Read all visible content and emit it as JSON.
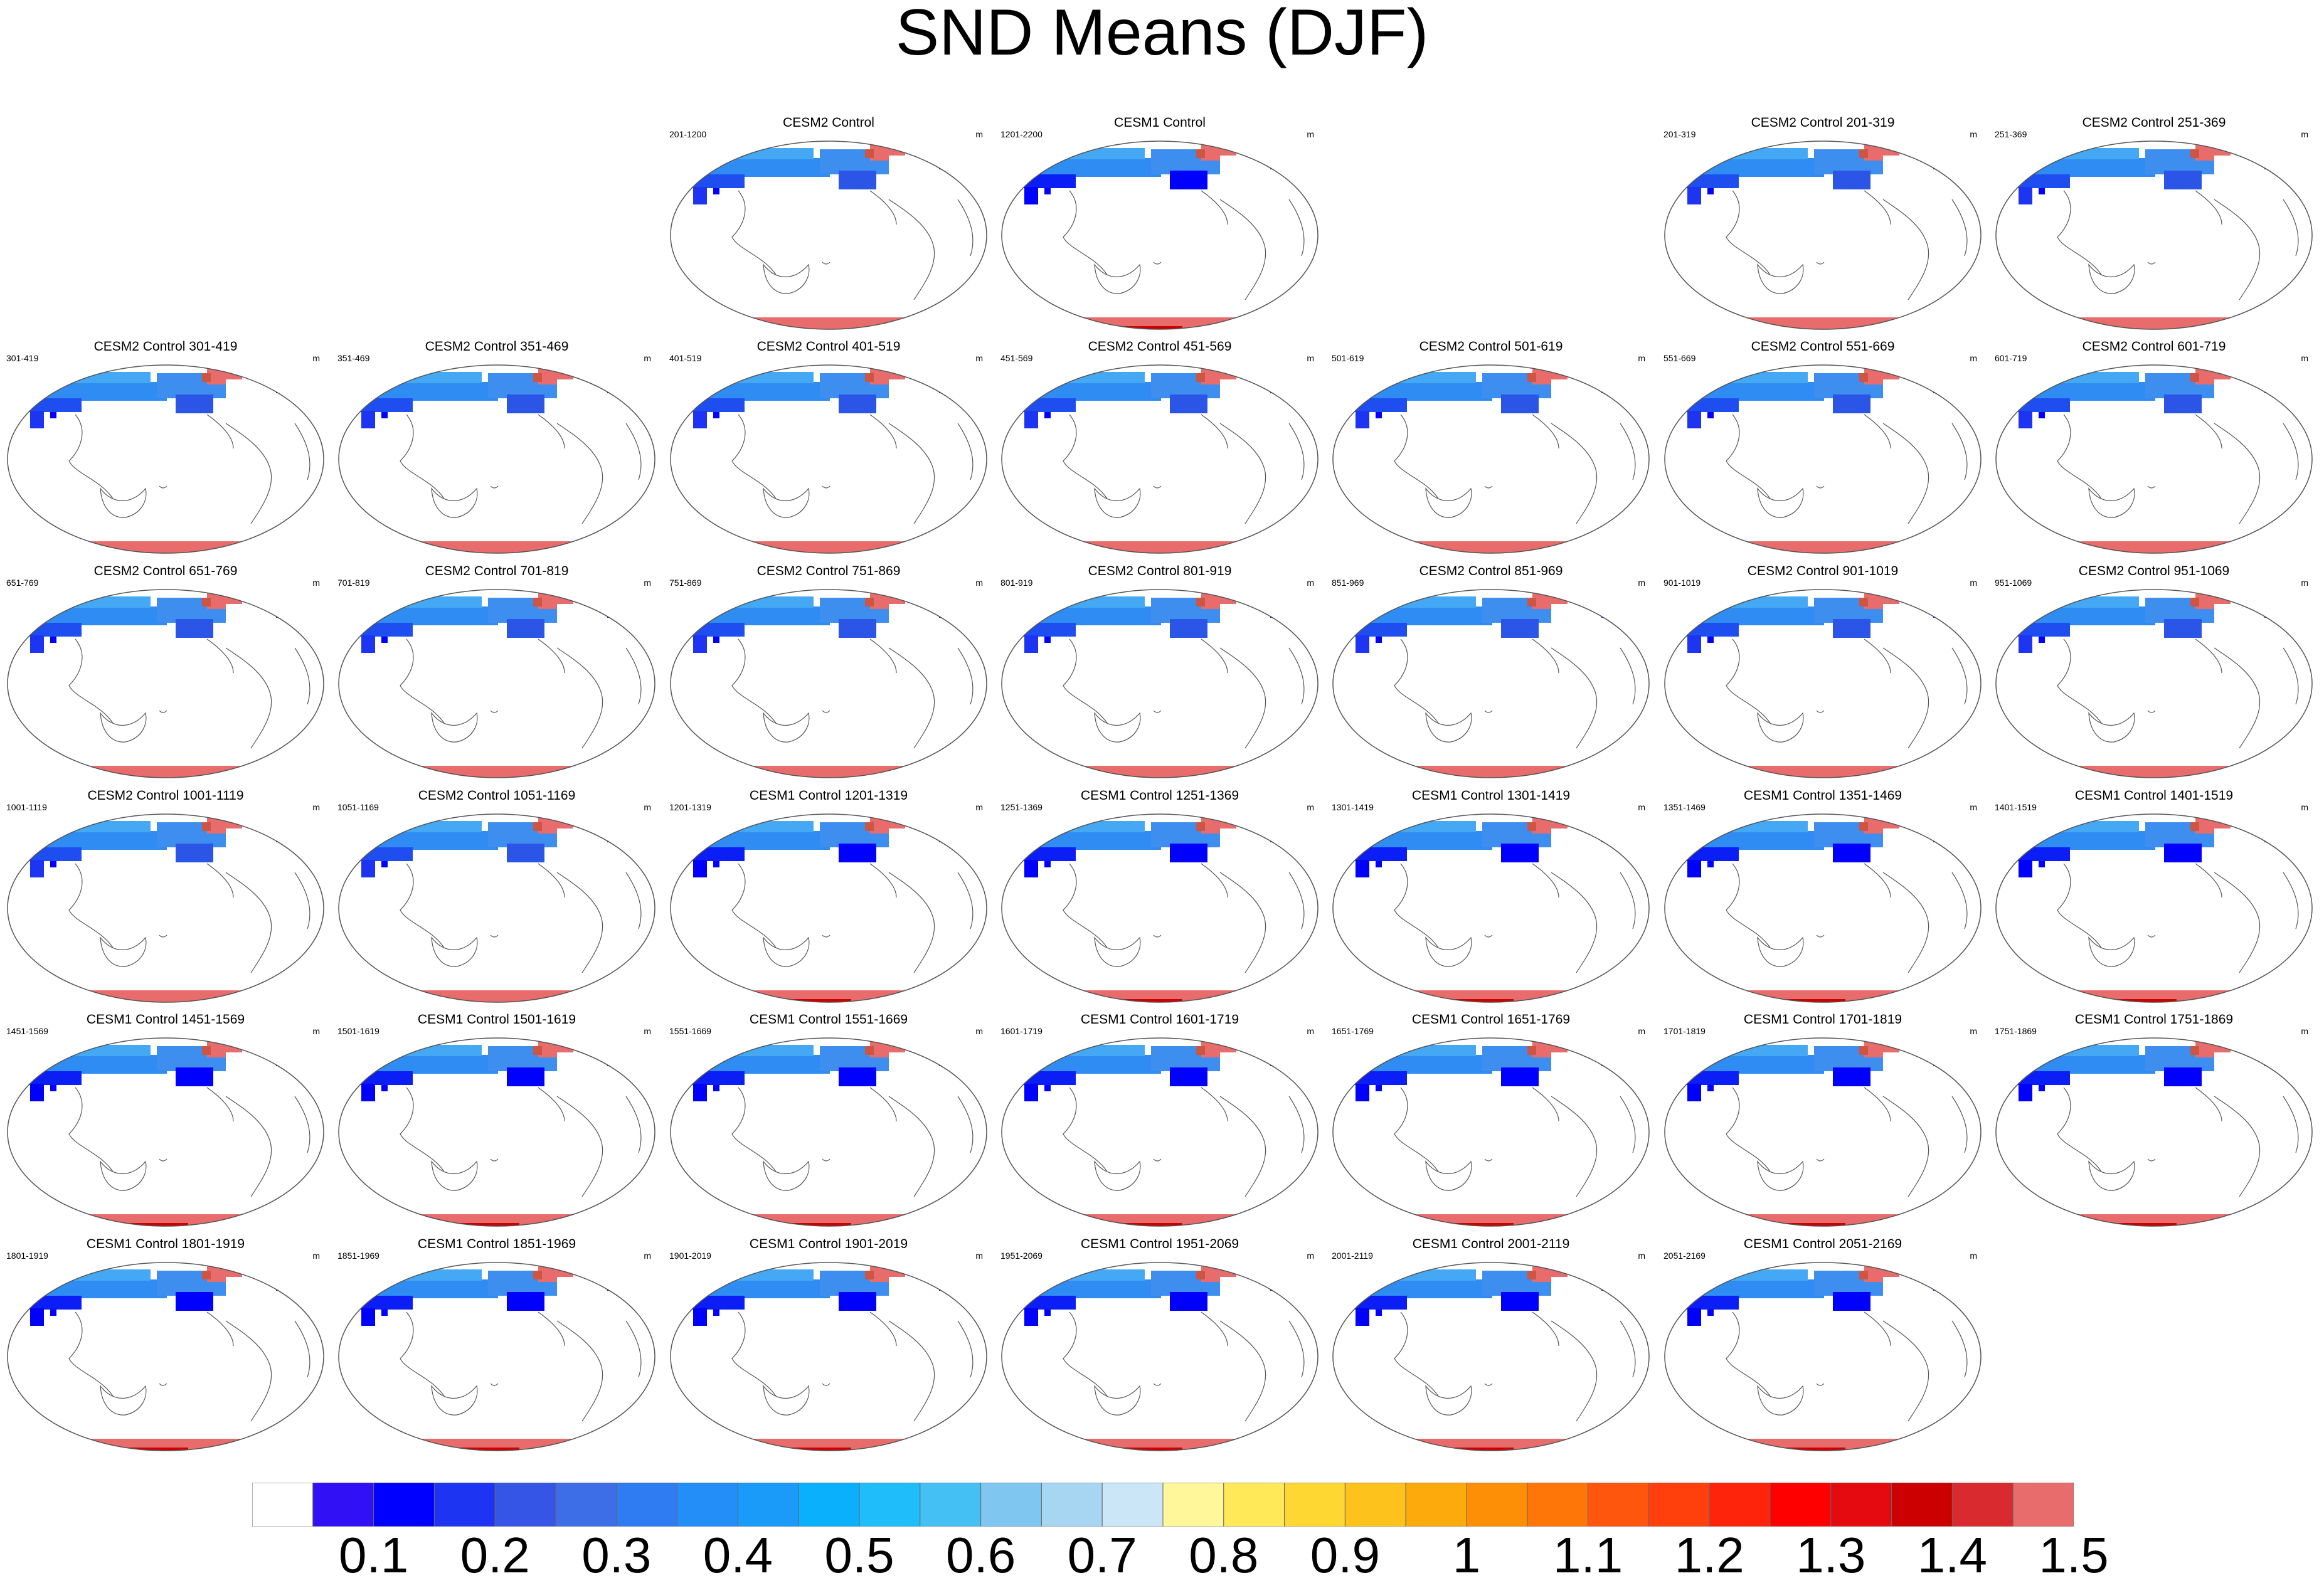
{
  "title": "SND Means (DJF)",
  "unit": "m",
  "colorbar": {
    "ticks": [
      "0.1",
      "0.2",
      "0.3",
      "0.4",
      "0.5",
      "0.6",
      "0.7",
      "0.8",
      "0.9",
      "1",
      "1.1",
      "1.2",
      "1.3",
      "1.4",
      "1.5"
    ],
    "colors": [
      "#ffffff",
      "#3210f5",
      "#0000ff",
      "#1e34f3",
      "#3455e6",
      "#3e6de8",
      "#2f7cf2",
      "#248ef8",
      "#1a9af9",
      "#0ab0fc",
      "#1fbefa",
      "#44c0f5",
      "#7fc7f0",
      "#a7d6f2",
      "#cbe6f6",
      "#fff799",
      "#ffe959",
      "#ffd732",
      "#fdc21b",
      "#fdaa0c",
      "#fd8f06",
      "#fe7607",
      "#fe570d",
      "#ff3f0c",
      "#fe240c",
      "#fe0000",
      "#e40a10",
      "#cc0000",
      "#d92a30",
      "#e86c6c"
    ]
  },
  "panels": [
    {
      "row": 0,
      "col": 2,
      "title": "CESM2 Control",
      "range": "201-1200",
      "model": "CESM2"
    },
    {
      "row": 0,
      "col": 3,
      "title": "CESM1 Control",
      "range": "1201-2200",
      "model": "CESM1"
    },
    {
      "row": 0,
      "col": 5,
      "title": "CESM2 Control 201-319",
      "range": "201-319",
      "model": "CESM2"
    },
    {
      "row": 0,
      "col": 6,
      "title": "CESM2 Control 251-369",
      "range": "251-369",
      "model": "CESM2"
    },
    {
      "row": 1,
      "col": 0,
      "title": "CESM2 Control 301-419",
      "range": "301-419",
      "model": "CESM2"
    },
    {
      "row": 1,
      "col": 1,
      "title": "CESM2 Control 351-469",
      "range": "351-469",
      "model": "CESM2"
    },
    {
      "row": 1,
      "col": 2,
      "title": "CESM2 Control 401-519",
      "range": "401-519",
      "model": "CESM2"
    },
    {
      "row": 1,
      "col": 3,
      "title": "CESM2 Control 451-569",
      "range": "451-569",
      "model": "CESM2"
    },
    {
      "row": 1,
      "col": 4,
      "title": "CESM2 Control 501-619",
      "range": "501-619",
      "model": "CESM2"
    },
    {
      "row": 1,
      "col": 5,
      "title": "CESM2 Control 551-669",
      "range": "551-669",
      "model": "CESM2"
    },
    {
      "row": 1,
      "col": 6,
      "title": "CESM2 Control 601-719",
      "range": "601-719",
      "model": "CESM2"
    },
    {
      "row": 2,
      "col": 0,
      "title": "CESM2 Control 651-769",
      "range": "651-769",
      "model": "CESM2"
    },
    {
      "row": 2,
      "col": 1,
      "title": "CESM2 Control 701-819",
      "range": "701-819",
      "model": "CESM2"
    },
    {
      "row": 2,
      "col": 2,
      "title": "CESM2 Control 751-869",
      "range": "751-869",
      "model": "CESM2"
    },
    {
      "row": 2,
      "col": 3,
      "title": "CESM2 Control 801-919",
      "range": "801-919",
      "model": "CESM2"
    },
    {
      "row": 2,
      "col": 4,
      "title": "CESM2 Control 851-969",
      "range": "851-969",
      "model": "CESM2"
    },
    {
      "row": 2,
      "col": 5,
      "title": "CESM2 Control 901-1019",
      "range": "901-1019",
      "model": "CESM2"
    },
    {
      "row": 2,
      "col": 6,
      "title": "CESM2 Control 951-1069",
      "range": "951-1069",
      "model": "CESM2"
    },
    {
      "row": 3,
      "col": 0,
      "title": "CESM2 Control 1001-1119",
      "range": "1001-1119",
      "model": "CESM2"
    },
    {
      "row": 3,
      "col": 1,
      "title": "CESM2 Control 1051-1169",
      "range": "1051-1169",
      "model": "CESM2"
    },
    {
      "row": 3,
      "col": 2,
      "title": "CESM1 Control 1201-1319",
      "range": "1201-1319",
      "model": "CESM1"
    },
    {
      "row": 3,
      "col": 3,
      "title": "CESM1 Control 1251-1369",
      "range": "1251-1369",
      "model": "CESM1"
    },
    {
      "row": 3,
      "col": 4,
      "title": "CESM1 Control 1301-1419",
      "range": "1301-1419",
      "model": "CESM1"
    },
    {
      "row": 3,
      "col": 5,
      "title": "CESM1 Control 1351-1469",
      "range": "1351-1469",
      "model": "CESM1"
    },
    {
      "row": 3,
      "col": 6,
      "title": "CESM1 Control 1401-1519",
      "range": "1401-1519",
      "model": "CESM1"
    },
    {
      "row": 4,
      "col": 0,
      "title": "CESM1 Control 1451-1569",
      "range": "1451-1569",
      "model": "CESM1"
    },
    {
      "row": 4,
      "col": 1,
      "title": "CESM1 Control 1501-1619",
      "range": "1501-1619",
      "model": "CESM1"
    },
    {
      "row": 4,
      "col": 2,
      "title": "CESM1 Control 1551-1669",
      "range": "1551-1669",
      "model": "CESM1"
    },
    {
      "row": 4,
      "col": 3,
      "title": "CESM1 Control 1601-1719",
      "range": "1601-1719",
      "model": "CESM1"
    },
    {
      "row": 4,
      "col": 4,
      "title": "CESM1 Control 1651-1769",
      "range": "1651-1769",
      "model": "CESM1"
    },
    {
      "row": 4,
      "col": 5,
      "title": "CESM1 Control 1701-1819",
      "range": "1701-1819",
      "model": "CESM1"
    },
    {
      "row": 4,
      "col": 6,
      "title": "CESM1 Control 1751-1869",
      "range": "1751-1869",
      "model": "CESM1"
    },
    {
      "row": 5,
      "col": 0,
      "title": "CESM1 Control 1801-1919",
      "range": "1801-1919",
      "model": "CESM1"
    },
    {
      "row": 5,
      "col": 1,
      "title": "CESM1 Control 1851-1969",
      "range": "1851-1969",
      "model": "CESM1"
    },
    {
      "row": 5,
      "col": 2,
      "title": "CESM1 Control 1901-2019",
      "range": "1901-2019",
      "model": "CESM1"
    },
    {
      "row": 5,
      "col": 3,
      "title": "CESM1 Control 1951-2069",
      "range": "1951-2069",
      "model": "CESM1"
    },
    {
      "row": 5,
      "col": 4,
      "title": "CESM1 Control 2001-2119",
      "range": "2001-2119",
      "model": "CESM1"
    },
    {
      "row": 5,
      "col": 5,
      "title": "CESM1 Control 2051-2169",
      "range": "2051-2169",
      "model": "CESM1"
    }
  ]
}
